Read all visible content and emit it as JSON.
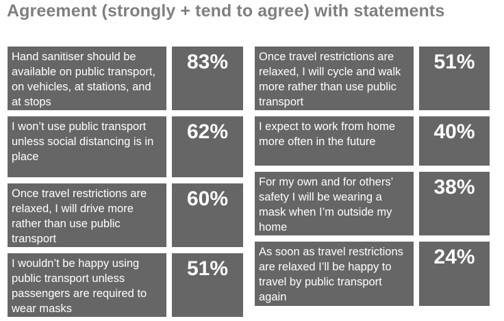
{
  "title": "Agreement (strongly + tend to agree) with statements",
  "left": [
    {
      "text": "Hand sanitiser should be available on public transport, on vehicles, at stations, and at stops",
      "value": "83%"
    },
    {
      "text": "I won’t use public transport unless social distancing is in place",
      "value": "62%"
    },
    {
      "text": "Once travel restrictions are relaxed, I will drive more rather than use public transport",
      "value": "60%"
    },
    {
      "text": "I wouldn’t be happy using public transport unless passengers are required to wear masks",
      "value": "51%"
    }
  ],
  "right": [
    {
      "text": "Once travel restrictions are relaxed, I will cycle and walk more rather than use public transport",
      "value": "51%"
    },
    {
      "text": "I expect to work from home more often in the future",
      "value": "40%"
    },
    {
      "text": "For my own and for others’ safety I will be wearing a mask when I’m outside my home",
      "value": "38%"
    },
    {
      "text": "As soon as travel restrictions are relaxed I’ll be happy to travel by public transport again",
      "value": "24%"
    }
  ],
  "colors": {
    "card": "#666666",
    "title": "#7f7f7f",
    "text": "#ffffff"
  }
}
